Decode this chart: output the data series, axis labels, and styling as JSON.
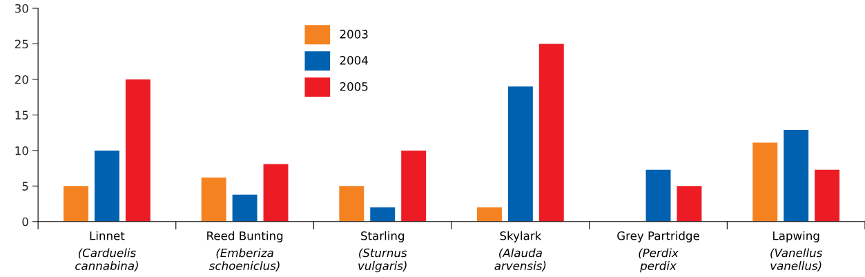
{
  "chart_data": {
    "type": "bar",
    "categories": [
      "Linnet\n(Carduelis\ncannabina)",
      "Reed Bunting\n(Emberiza\nschoeniclus)",
      "Starling\n(Sturnus\nvulgaris)",
      "Skylark\n(Alauda\narvensis)",
      "Grey Partridge\n(Perdix\nperdix",
      "Lapwing\n(Vanellus\nvanellus)"
    ],
    "series": [
      {
        "name": "2003",
        "color": "#f58220",
        "values": [
          5,
          6.2,
          5,
          2,
          null,
          11.1
        ]
      },
      {
        "name": "2004",
        "color": "#0061b0",
        "values": [
          10,
          3.8,
          2,
          19,
          7.3,
          12.9
        ]
      },
      {
        "name": "2005",
        "color": "#ed1c24",
        "values": [
          20,
          8.1,
          10,
          25,
          5,
          7.3
        ]
      }
    ],
    "ylim": [
      0,
      30
    ],
    "yticks": [
      0,
      5,
      10,
      15,
      20,
      25,
      30
    ],
    "grid": false,
    "legend": "top left"
  }
}
